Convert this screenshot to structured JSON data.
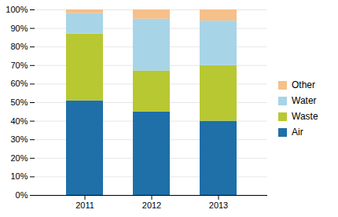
{
  "chart_data": {
    "type": "bar",
    "stacked": true,
    "categories": [
      "2011",
      "2012",
      "2013"
    ],
    "series": [
      {
        "name": "Air",
        "color": "#1f6fa8",
        "values": [
          0.51,
          0.45,
          0.4
        ]
      },
      {
        "name": "Waste",
        "color": "#b8c832",
        "values": [
          0.36,
          0.22,
          0.3
        ]
      },
      {
        "name": "Water",
        "color": "#a8d4e8",
        "values": [
          0.11,
          0.28,
          0.24
        ]
      },
      {
        "name": "Other",
        "color": "#f5c08a",
        "values": [
          0.02,
          0.05,
          0.06
        ]
      }
    ],
    "ylim": [
      0,
      1.0
    ],
    "yticks": [
      {
        "value": 0.0,
        "label": "0%"
      },
      {
        "value": 0.1,
        "label": "10%"
      },
      {
        "value": 0.2,
        "label": "20%"
      },
      {
        "value": 0.3,
        "label": "30%"
      },
      {
        "value": 0.4,
        "label": "40%"
      },
      {
        "value": 0.5,
        "label": "50%"
      },
      {
        "value": 0.6,
        "label": "60%"
      },
      {
        "value": 0.7,
        "label": "70%"
      },
      {
        "value": 0.8,
        "label": "80%"
      },
      {
        "value": 0.9,
        "label": "90%"
      },
      {
        "value": 1.0,
        "label": "100%"
      }
    ],
    "grid": true,
    "legend": "right"
  }
}
